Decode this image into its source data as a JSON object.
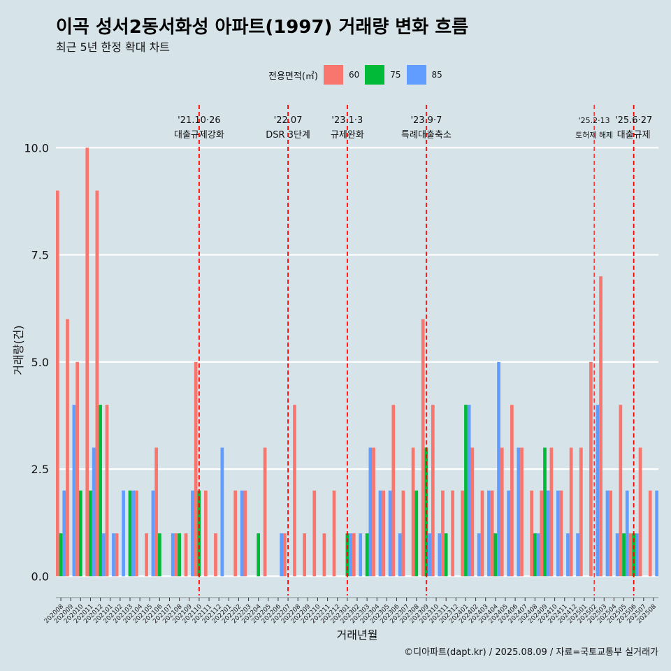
{
  "title": "이곡 성서2동서화성 아파트(1997) 거래량 변화 흐름",
  "subtitle": "최근 5년 한정 확대 차트",
  "caption": "©디아파트(dapt.kr) / 2025.08.09 / 자료=국토교통부 실거래가",
  "legend": {
    "title": "전용면적(㎡)",
    "items": [
      {
        "label": "60",
        "color": "#f8766d"
      },
      {
        "label": "75",
        "color": "#00ba38"
      },
      {
        "label": "85",
        "color": "#619cff"
      }
    ]
  },
  "chart_data": {
    "type": "bar",
    "title": "이곡 성서2동서화성 아파트(1997) 거래량 변화 흐름",
    "xlabel": "거래년월",
    "ylabel": "거래량(건)",
    "ylim": [
      -0.45,
      11.0
    ],
    "yticks": [
      0.0,
      2.5,
      5.0,
      7.5,
      10.0
    ],
    "ytick_labels": [
      "0.0",
      "2.5",
      "5.0",
      "7.5",
      "10.0"
    ],
    "categories": [
      "202008",
      "202009",
      "202010",
      "202011",
      "202012",
      "202101",
      "202102",
      "202103",
      "202104",
      "202105",
      "202106",
      "202107",
      "202108",
      "202109",
      "202110",
      "202111",
      "202112",
      "202201",
      "202202",
      "202203",
      "202204",
      "202205",
      "202206",
      "202207",
      "202208",
      "202209",
      "202210",
      "202211",
      "202212",
      "202301",
      "202302",
      "202303",
      "202304",
      "202305",
      "202306",
      "202307",
      "202308",
      "202309",
      "202310",
      "202311",
      "202312",
      "202401",
      "202402",
      "202403",
      "202404",
      "202405",
      "202406",
      "202407",
      "202408",
      "202409",
      "202410",
      "202411",
      "202412",
      "202501",
      "202502",
      "202503",
      "202504",
      "202505",
      "202506",
      "202507",
      "202508"
    ],
    "series": [
      {
        "name": "60",
        "color": "#f8766d",
        "values": [
          9,
          6,
          5,
          10,
          9,
          4,
          1,
          0,
          2,
          1,
          3,
          0,
          1,
          1,
          5,
          2,
          1,
          0,
          2,
          2,
          0,
          3,
          0,
          1,
          4,
          1,
          2,
          1,
          2,
          0,
          1,
          0,
          3,
          2,
          4,
          2,
          3,
          6,
          4,
          2,
          2,
          2,
          3,
          2,
          2,
          3,
          4,
          3,
          2,
          2,
          3,
          2,
          3,
          3,
          5,
          7,
          2,
          4,
          1,
          3,
          2
        ]
      },
      {
        "name": "75",
        "color": "#00ba38",
        "values": [
          1,
          0,
          2,
          2,
          4,
          0,
          0,
          2,
          0,
          0,
          1,
          0,
          1,
          0,
          2,
          0,
          0,
          0,
          0,
          0,
          1,
          0,
          0,
          0,
          0,
          0,
          0,
          0,
          0,
          1,
          0,
          1,
          0,
          0,
          0,
          0,
          2,
          3,
          0,
          1,
          0,
          4,
          0,
          0,
          1,
          0,
          0,
          0,
          1,
          3,
          0,
          0,
          0,
          0,
          0,
          0,
          0,
          1,
          1,
          0,
          0
        ]
      },
      {
        "name": "85",
        "color": "#619cff",
        "values": [
          2,
          4,
          0,
          3,
          1,
          1,
          2,
          2,
          0,
          2,
          0,
          1,
          0,
          2,
          0,
          0,
          3,
          0,
          2,
          0,
          0,
          0,
          1,
          0,
          0,
          0,
          0,
          0,
          0,
          1,
          1,
          3,
          2,
          2,
          1,
          0,
          0,
          1,
          1,
          0,
          0,
          4,
          1,
          2,
          5,
          2,
          3,
          0,
          1,
          2,
          2,
          1,
          1,
          0,
          4,
          2,
          1,
          2,
          1,
          0,
          2
        ]
      }
    ],
    "events": [
      {
        "date": "'21.10·26",
        "label": "대출규제강화",
        "at": "202110"
      },
      {
        "date": "'22.07",
        "label": "DSR 3단계",
        "at": "202207"
      },
      {
        "date": "'23.1·3",
        "label": "규제완화",
        "at": "202301"
      },
      {
        "date": "'23.9·7",
        "label": "특례대출축소",
        "at": "202309"
      },
      {
        "date": "'25.2·13",
        "label": "토허제 해제",
        "at": "202502"
      },
      {
        "date": "'25.6·27",
        "label": "대출규제",
        "at": "202506"
      }
    ]
  }
}
